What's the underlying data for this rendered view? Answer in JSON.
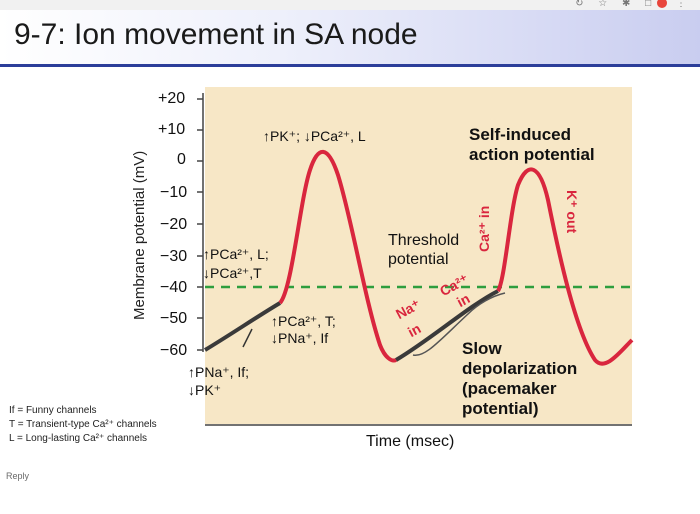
{
  "slide": {
    "title": "9-7: Ion movement in SA node",
    "ylabel": "Membrane potential (mV)",
    "xlabel": "Time (msec)",
    "yticks": [
      "+20",
      "+10",
      "0",
      "−10",
      "−20",
      "−30",
      "−40",
      "−50",
      "−60"
    ],
    "notes": {
      "top_formula": "↑PK⁺; ↓PCa²⁺, L",
      "self_induced_1": "Self-induced",
      "self_induced_2": "action potential",
      "threshold_1": "Threshold",
      "threshold_2": "potential",
      "pca_l_1": "↑PCa²⁺, L;",
      "pca_l_2": "↓PCa²⁺,T",
      "pca_t_1": "↑PCa²⁺, T;",
      "pca_t_2": "↓PNa⁺, If",
      "pna_1": "↑PNa⁺, If;",
      "pna_2": "↓PK⁺",
      "na_in_1": "Na⁺",
      "na_in_2": "in",
      "ca_in_1": "Ca²⁺",
      "ca_in_2": "in",
      "ca_in_vertical": "Ca²⁺ in",
      "k_out_vertical": "K⁺ out",
      "slow_1": "Slow",
      "slow_2": "depolarization",
      "slow_3": "(pacemaker",
      "slow_4": "potential)"
    },
    "legend": [
      "If = Funny channels",
      "T = Transient-type Ca²⁺ channels",
      "L = Long-lasting Ca²⁺ channels"
    ],
    "reply_label": "Reply"
  },
  "chart_data": {
    "type": "line",
    "title": "",
    "xlabel": "Time (msec)",
    "ylabel": "Membrane potential (mV)",
    "ylim": [
      -60,
      20
    ],
    "yticks": [
      20,
      10,
      0,
      -10,
      -20,
      -30,
      -40,
      -50,
      -60
    ],
    "threshold_mv": -40,
    "series": [
      {
        "color": "#d9263e",
        "x": [
          0,
          1,
          2,
          3,
          4,
          5,
          6,
          7,
          8
        ],
        "y": [
          -50,
          -40,
          10,
          -40,
          -60,
          -50,
          -40,
          5,
          -60
        ]
      }
    ],
    "colors": {
      "depolarization": "#3a3a3a",
      "action_potential": "#d9263e",
      "threshold": "#2e9e3e"
    }
  }
}
